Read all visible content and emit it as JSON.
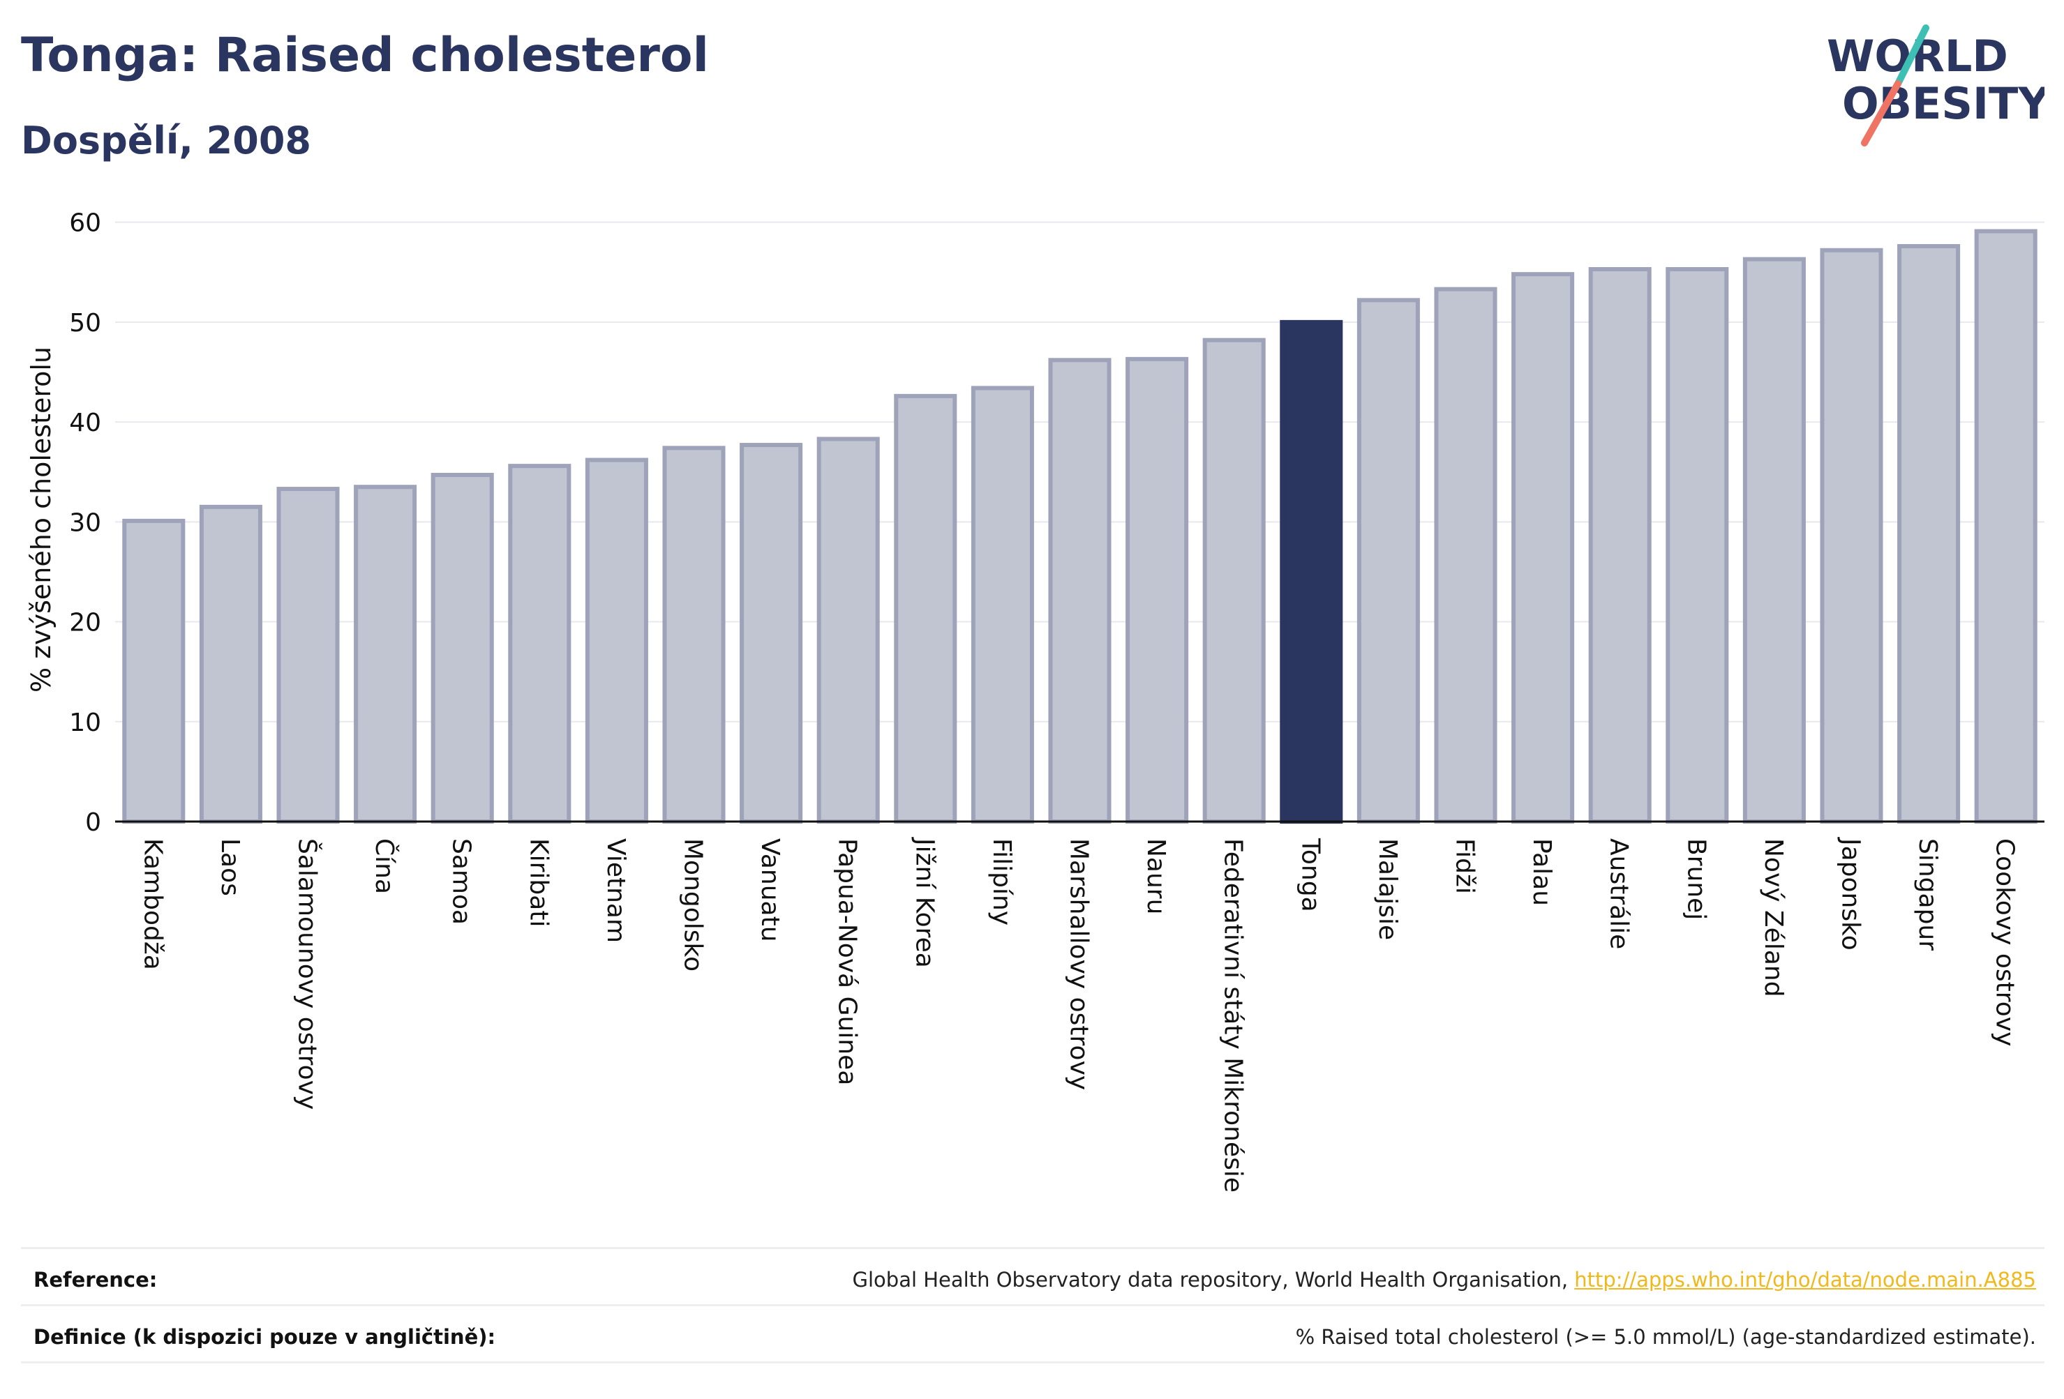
{
  "header": {
    "title": "Tonga: Raised cholesterol",
    "subtitle": "Dospělí, 2008"
  },
  "logo": {
    "line1": "WORLD",
    "line2": "OBESITY",
    "accent_teal": "#3dbfb3",
    "accent_coral": "#f07464",
    "text_color": "#2a3560"
  },
  "colors": {
    "bar": "#c1c4d1",
    "bar_stroke": "#9ea3ba",
    "highlight": "#2a3560",
    "grid": "#e8e8ee",
    "axis": "#111111",
    "text": "#111111"
  },
  "chart_data": {
    "type": "bar",
    "ylabel": "% zvýšeného cholesterolu",
    "xlabel": "",
    "ylim": [
      0,
      62
    ],
    "yticks": [
      0,
      10,
      20,
      30,
      40,
      50,
      60
    ],
    "grid": true,
    "highlight": "Tonga",
    "categories": [
      "Kambodža",
      "Laos",
      "Šalamounovy ostrovy",
      "Čína",
      "Samoa",
      "Kiribati",
      "Vietnam",
      "Mongolsko",
      "Vanuatu",
      "Papua-Nová Guinea",
      "Jižní Korea",
      "Filipíny",
      "Marshallovy ostrovy",
      "Nauru",
      "Federativní státy Mikronésie",
      "Tonga",
      "Malajsie",
      "Fidži",
      "Palau",
      "Austrálie",
      "Brunej",
      "Nový Zéland",
      "Japonsko",
      "Singapur",
      "Cookovy ostrovy"
    ],
    "values": [
      30.1,
      31.5,
      33.3,
      33.5,
      34.7,
      35.6,
      36.2,
      37.4,
      37.7,
      38.3,
      42.6,
      43.4,
      46.2,
      46.3,
      48.2,
      50.0,
      52.2,
      53.3,
      54.8,
      55.3,
      55.3,
      56.3,
      57.2,
      57.6,
      59.1
    ]
  },
  "footer": {
    "reference_label": "Reference:",
    "reference_text": "Global Health Observatory data repository, World Health Organisation, ",
    "reference_link": "http://apps.who.int/gho/data/node.main.A885",
    "definition_label": "Definice (k dispozici pouze v angličtině):",
    "definition_text": "% Raised total cholesterol (>= 5.0 mmol/L) (age-standardized estimate)."
  }
}
